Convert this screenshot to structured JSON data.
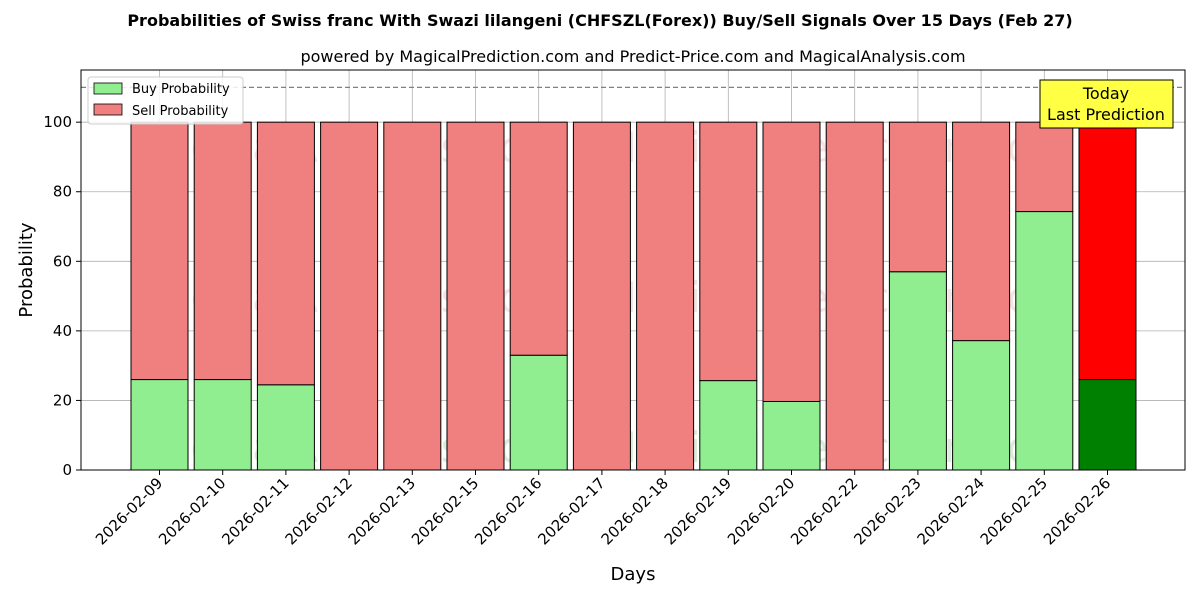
{
  "chart_data": {
    "type": "bar",
    "stacked": true,
    "title": "Probabilities of Swiss franc With Swazi lilangeni (CHFSZL(Forex)) Buy/Sell Signals Over 15 Days (Feb 27)",
    "subtitle": "powered by MagicalPrediction.com and Predict-Price.com and MagicalAnalysis.com",
    "xlabel": "Days",
    "ylabel": "Probability",
    "ylim": [
      0,
      115
    ],
    "yticks": [
      0,
      20,
      40,
      60,
      80,
      100
    ],
    "grid": true,
    "legend_position": "top-left",
    "reference_line": 110,
    "categories": [
      "2026-02-09",
      "2026-02-10",
      "2026-02-11",
      "2026-02-12",
      "2026-02-13",
      "2026-02-15",
      "2026-02-16",
      "2026-02-17",
      "2026-02-18",
      "2026-02-19",
      "2026-02-20",
      "2026-02-22",
      "2026-02-23",
      "2026-02-24",
      "2026-02-25",
      "2026-02-26"
    ],
    "series": [
      {
        "name": "Buy Probability",
        "color": "#90ee90",
        "highlight_color": "#008000",
        "values": [
          26,
          26,
          24.5,
          0,
          0,
          0,
          33,
          0,
          0,
          25.7,
          19.7,
          0,
          57,
          37.2,
          74.3,
          26
        ]
      },
      {
        "name": "Sell Probability",
        "color": "#f08080",
        "highlight_color": "#ff0000",
        "values": [
          74,
          74,
          75.5,
          100,
          100,
          100,
          67,
          100,
          100,
          74.3,
          80.3,
          100,
          43,
          62.8,
          25.7,
          74
        ]
      }
    ],
    "highlight_index": 15,
    "annotation": {
      "line1": "Today",
      "line2": "Last Prediction",
      "bg": "#ffff44"
    },
    "watermarks": [
      "MagicalAnalysis.com",
      "MagicalPrediction.com"
    ]
  }
}
